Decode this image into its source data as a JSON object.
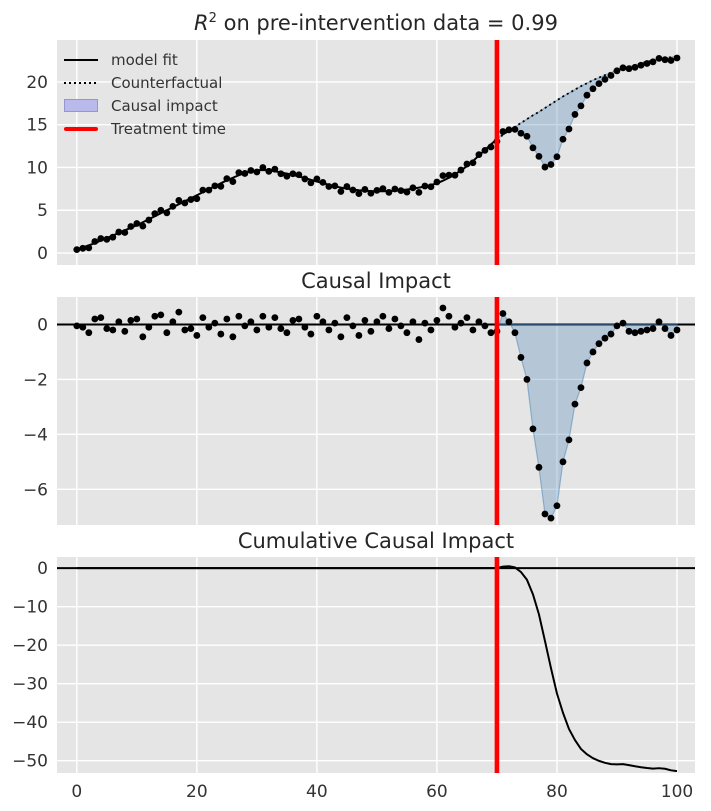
{
  "figure": {
    "background": "#ffffff",
    "panel_background": "#e5e5e5",
    "grid_color": "#ffffff",
    "text_color": "#333333",
    "title_color": "#262626",
    "point_color": "#000000",
    "line_color": "#000000",
    "treatment_color": "#ff0000",
    "impact_fill": "#4682b4",
    "impact_fill_alpha": 0.3,
    "impact_edge_alpha": 0.5
  },
  "legend": {
    "position": "upper left",
    "items": [
      {
        "label": "model fit",
        "swatch": "solid-line",
        "color": "#000000"
      },
      {
        "label": "Counterfactual",
        "swatch": "dotted-line",
        "color": "#000000"
      },
      {
        "label": "Causal impact",
        "swatch": "patch",
        "color": "#b9b9ec",
        "border": "#9595d6"
      },
      {
        "label": "Treatment time",
        "swatch": "thick-line",
        "color": "#ff0000"
      }
    ]
  },
  "chart_data": [
    {
      "type": "scatter",
      "title": "R² on pre-intervention data = 0.99",
      "title_parts": {
        "var": "R",
        "sup": "2",
        "rest": " on pre-intervention data = 0.99"
      },
      "x_start": 0,
      "x_step": 1,
      "treatment_x": 70,
      "xlim": [
        -3.3,
        103
      ],
      "ylim": [
        -1.4,
        24.9
      ],
      "xticks": [
        0,
        20,
        40,
        60,
        80,
        100
      ],
      "show_xtick_labels": false,
      "yticks": [
        0,
        5,
        10,
        15,
        20
      ],
      "grid": true,
      "observed": [
        0.4,
        0.55,
        0.6,
        1.35,
        1.7,
        1.6,
        1.85,
        2.45,
        2.4,
        3.1,
        3.45,
        3.15,
        3.85,
        4.6,
        5.0,
        4.7,
        5.45,
        6.15,
        5.85,
        6.25,
        6.35,
        7.35,
        7.35,
        7.85,
        7.8,
        8.7,
        8.35,
        9.4,
        9.3,
        9.65,
        9.47,
        10.0,
        9.55,
        9.8,
        9.27,
        8.98,
        9.27,
        9.15,
        8.66,
        8.21,
        8.66,
        8.26,
        7.78,
        7.85,
        7.2,
        7.77,
        7.37,
        6.94,
        7.43,
        6.99,
        7.32,
        7.52,
        7.09,
        7.48,
        7.29,
        7.12,
        7.62,
        7.09,
        7.83,
        7.75,
        8.3,
        9.05,
        9.1,
        9.1,
        9.7,
        10.4,
        10.55,
        11.5,
        12.0,
        12.4,
        13.05,
        14.2,
        14.4,
        14.45,
        14.0,
        13.65,
        12.3,
        11.3,
        10.05,
        10.35,
        11.25,
        13.3,
        14.5,
        16.2,
        17.2,
        18.45,
        19.2,
        19.8,
        20.3,
        20.75,
        21.3,
        21.65,
        21.55,
        21.7,
        21.95,
        22.15,
        22.35,
        22.75,
        22.6,
        22.5,
        22.8
      ],
      "counterfactual": [
        0.45,
        0.65,
        0.9,
        1.15,
        1.45,
        1.75,
        2.05,
        2.35,
        2.65,
        2.95,
        3.25,
        3.6,
        3.95,
        4.3,
        4.65,
        5.0,
        5.35,
        5.7,
        6.05,
        6.4,
        6.75,
        7.1,
        7.45,
        7.8,
        8.15,
        8.5,
        8.8,
        9.1,
        9.35,
        9.55,
        9.67,
        9.7,
        9.65,
        9.55,
        9.42,
        9.28,
        9.12,
        8.95,
        8.76,
        8.56,
        8.36,
        8.16,
        7.98,
        7.8,
        7.65,
        7.52,
        7.42,
        7.34,
        7.28,
        7.24,
        7.22,
        7.22,
        7.24,
        7.28,
        7.34,
        7.42,
        7.52,
        7.64,
        7.78,
        7.95,
        8.15,
        8.45,
        8.8,
        9.2,
        9.65,
        10.15,
        10.75,
        11.4,
        12.05,
        12.7,
        13.3,
        13.8,
        14.3,
        14.75,
        15.2,
        15.65,
        16.1,
        16.5,
        16.95,
        17.4,
        17.85,
        18.3,
        18.7,
        19.1,
        19.5,
        19.85,
        20.2,
        20.5,
        20.8,
        21.1,
        21.35,
        21.6,
        21.8,
        22.0,
        22.2,
        22.35,
        22.5,
        22.65,
        22.75,
        22.9,
        23.0
      ]
    },
    {
      "type": "scatter",
      "title": "Causal Impact",
      "x_start": 0,
      "x_step": 1,
      "treatment_x": 70,
      "xlim": [
        -3.3,
        103
      ],
      "ylim": [
        -7.3,
        1.0
      ],
      "xticks": [
        0,
        20,
        40,
        60,
        80,
        100
      ],
      "show_xtick_labels": false,
      "yticks": [
        0,
        -2,
        -4,
        -6
      ],
      "grid": true,
      "impact": [
        -0.05,
        -0.1,
        -0.3,
        0.2,
        0.25,
        -0.15,
        -0.2,
        0.1,
        -0.25,
        0.15,
        0.2,
        -0.45,
        -0.1,
        0.3,
        0.35,
        -0.3,
        0.1,
        0.45,
        -0.2,
        -0.15,
        -0.4,
        0.25,
        -0.1,
        0.05,
        -0.35,
        0.2,
        -0.45,
        0.3,
        -0.05,
        0.1,
        -0.2,
        0.3,
        -0.1,
        0.25,
        -0.15,
        -0.3,
        0.15,
        0.2,
        -0.1,
        -0.35,
        0.3,
        0.1,
        -0.2,
        0.05,
        -0.45,
        0.25,
        -0.05,
        -0.4,
        0.15,
        -0.25,
        0.1,
        0.3,
        -0.15,
        0.2,
        -0.05,
        -0.3,
        0.1,
        -0.55,
        0.05,
        -0.2,
        0.15,
        0.6,
        0.3,
        -0.1,
        0.05,
        0.25,
        -0.2,
        0.1,
        -0.05,
        -0.3,
        -0.25,
        0.4,
        0.1,
        -0.3,
        -1.2,
        -2.0,
        -3.8,
        -5.2,
        -6.9,
        -7.05,
        -6.6,
        -5.0,
        -4.2,
        -2.9,
        -2.3,
        -1.4,
        -1.0,
        -0.7,
        -0.5,
        -0.35,
        -0.05,
        0.05,
        -0.25,
        -0.3,
        -0.25,
        -0.2,
        -0.15,
        0.1,
        -0.15,
        -0.4,
        -0.2
      ]
    },
    {
      "type": "line",
      "title": "Cumulative Causal Impact",
      "x_start": 0,
      "x_step": 1,
      "treatment_x": 70,
      "xlim": [
        -3.3,
        103
      ],
      "ylim": [
        -53.2,
        2.9
      ],
      "xticks": [
        0,
        20,
        40,
        60,
        80,
        100
      ],
      "show_xtick_labels": true,
      "yticks": [
        0,
        -10,
        -20,
        -30,
        -40,
        -50
      ],
      "grid": true,
      "cumulative": [
        0,
        0,
        0,
        0,
        0,
        0,
        0,
        0,
        0,
        0,
        0,
        0,
        0,
        0,
        0,
        0,
        0,
        0,
        0,
        0,
        0,
        0,
        0,
        0,
        0,
        0,
        0,
        0,
        0,
        0,
        0,
        0,
        0,
        0,
        0,
        0,
        0,
        0,
        0,
        0,
        0,
        0,
        0,
        0,
        0,
        0,
        0,
        0,
        0,
        0,
        0,
        0,
        0,
        0,
        0,
        0,
        0,
        0,
        0,
        0,
        0,
        0,
        0,
        0,
        0,
        0,
        0,
        0,
        0,
        0,
        0,
        0.4,
        0.5,
        0.2,
        -1.0,
        -3.0,
        -6.8,
        -12.0,
        -18.9,
        -25.95,
        -32.55,
        -37.55,
        -41.75,
        -44.65,
        -46.95,
        -48.35,
        -49.35,
        -50.05,
        -50.55,
        -50.9,
        -50.95,
        -50.9,
        -51.15,
        -51.45,
        -51.7,
        -51.9,
        -52.05,
        -51.95,
        -52.1,
        -52.5,
        -52.7
      ]
    }
  ]
}
